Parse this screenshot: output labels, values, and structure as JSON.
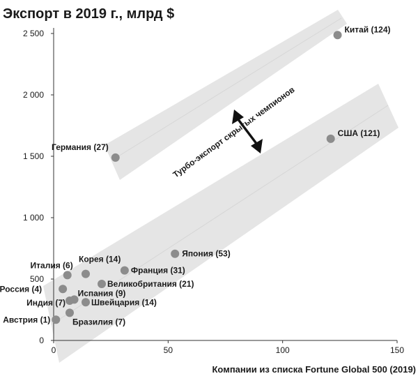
{
  "chart_data": {
    "type": "scatter",
    "title": "Экспорт в 2019 г., млрд $",
    "xlabel": "Компании из списка Fortune Global 500 (2019)",
    "ylabel": "",
    "xlim": [
      0,
      150
    ],
    "ylim": [
      0,
      2500
    ],
    "x_ticks": [
      0,
      50,
      100,
      150
    ],
    "x_tick_labels": [
      "0",
      "50",
      "100",
      "150"
    ],
    "y_ticks": [
      0,
      500,
      1000,
      1500,
      2000,
      2500
    ],
    "y_tick_labels": [
      "0",
      "500",
      "1 000",
      "1 500",
      "2 000",
      "2 500"
    ],
    "grid": false,
    "annotation": "Турбо-экспорт скрытых чемпионов",
    "points": [
      {
        "label": "Китай (124)",
        "x": 124,
        "y": 2487
      },
      {
        "label": "Германия (27)",
        "x": 27,
        "y": 1489
      },
      {
        "label": "США (121)",
        "x": 121,
        "y": 1643
      },
      {
        "label": "Япония (53)",
        "x": 53,
        "y": 706
      },
      {
        "label": "Франция (31)",
        "x": 31,
        "y": 570
      },
      {
        "label": "Корея (14)",
        "x": 14,
        "y": 542
      },
      {
        "label": "Италия (6)",
        "x": 6,
        "y": 532
      },
      {
        "label": "Великобритания (21)",
        "x": 21,
        "y": 460
      },
      {
        "label": "Россия (4)",
        "x": 4,
        "y": 419
      },
      {
        "label": "Испания (9)",
        "x": 9,
        "y": 333
      },
      {
        "label": "Индия (7)",
        "x": 7,
        "y": 324
      },
      {
        "label": "Швейцария (14)",
        "x": 14,
        "y": 311
      },
      {
        "label": "Бразилия (7)",
        "x": 7,
        "y": 225
      },
      {
        "label": "Австрия (1)",
        "x": 1,
        "y": 169
      }
    ]
  }
}
